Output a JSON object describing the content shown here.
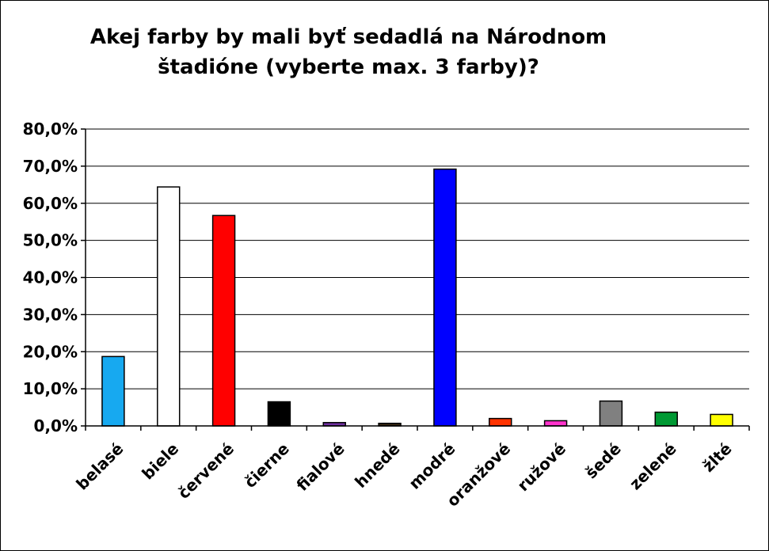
{
  "chart_data": {
    "type": "bar",
    "title_lines": [
      "Akej farby by mali byť sedadlá na Národnom",
      "štadióne (vyberte max. 3 farby)?"
    ],
    "xlabel": "",
    "ylabel": "",
    "ylim": [
      0,
      80
    ],
    "ytick_labels": [
      "0,0%",
      "10,0%",
      "20,0%",
      "30,0%",
      "40,0%",
      "50,0%",
      "60,0%",
      "70,0%",
      "80,0%"
    ],
    "grid": true,
    "legend": "none",
    "categories": [
      "belasé",
      "biele",
      "červené",
      "čierne",
      "fialové",
      "hnedé",
      "modré",
      "oranžové",
      "ružové",
      "šedé",
      "zelené",
      "žlté"
    ],
    "values": [
      18.7,
      64.4,
      56.7,
      6.5,
      0.9,
      0.7,
      69.2,
      2.0,
      1.4,
      6.7,
      3.7,
      3.1
    ],
    "colors": [
      "#17A9F0",
      "#FFFFFF",
      "#FF0000",
      "#000000",
      "#7030A0",
      "#3A2A14",
      "#0000FF",
      "#FF3300",
      "#FF33CC",
      "#808080",
      "#009933",
      "#FFFF00"
    ]
  }
}
